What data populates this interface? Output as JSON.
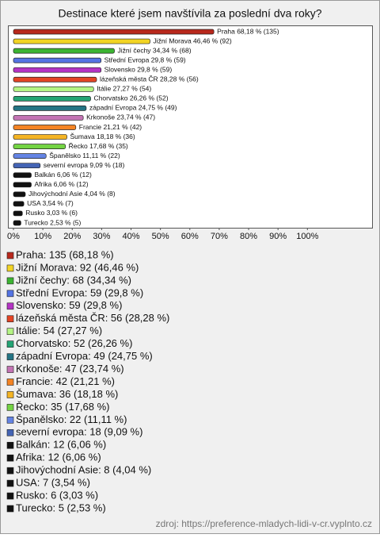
{
  "chart_data": {
    "type": "hbar",
    "title": "Destinace které jsem navštívila za poslední dva roky?",
    "categories": [
      "Praha",
      "Jižní Morava",
      "Jižní čechy",
      "Střední Evropa",
      "Slovensko",
      "lázeňská města ČR",
      "Itálie",
      "Chorvatsko",
      "západní Evropa",
      "Krkonoše",
      "Francie",
      "Šumava",
      "Řecko",
      "Španělsko",
      "severní evropa",
      "Balkán",
      "Afrika",
      "Jihovýchodní Asie",
      "USA",
      "Rusko",
      "Turecko"
    ],
    "values": [
      68.18,
      46.46,
      34.34,
      29.8,
      29.8,
      28.28,
      27.27,
      26.26,
      24.75,
      23.74,
      21.21,
      18.18,
      17.68,
      11.11,
      9.09,
      6.06,
      6.06,
      4.04,
      3.54,
      3.03,
      2.53
    ],
    "value_labels": [
      "Praha 68,18 % (135)",
      "Jižní Morava 46,46 % (92)",
      "Jižní čechy 34,34 % (68)",
      "Střední Evropa 29,8 % (59)",
      "Slovensko 29,8 % (59)",
      "lázeňská města ČR 28,28 % (56)",
      "Itálie 27,27 % (54)",
      "Chorvatsko 26,26 % (52)",
      "západní Evropa 24,75 % (49)",
      "Krkonoše 23,74 % (47)",
      "Francie 21,21 % (42)",
      "Šumava 18,18 % (36)",
      "Řecko 17,68 % (35)",
      "Španělsko 11,11 % (22)",
      "severní evropa 9,09 % (18)",
      "Balkán 6,06 % (12)",
      "Afrika 6,06 % (12)",
      "Jihovýchodní Asie 4,04 % (8)",
      "USA 3,54 % (7)",
      "Rusko 3,03 % (6)",
      "Turecko 2,53 % (5)"
    ],
    "legend": [
      "Praha: 135 (68,18 %)",
      "Jižní Morava: 92 (46,46 %)",
      "Jižní čechy: 68 (34,34 %)",
      "Střední Evropa: 59 (29,8 %)",
      "Slovensko: 59 (29,8 %)",
      "lázeňská města ČR: 56 (28,28 %)",
      "Itálie: 54 (27,27 %)",
      "Chorvatsko: 52 (26,26 %)",
      "západní Evropa: 49 (24,75 %)",
      "Krkonoše: 47 (23,74 %)",
      "Francie: 42 (21,21 %)",
      "Šumava: 36 (18,18 %)",
      "Řecko: 35 (17,68 %)",
      "Španělsko: 22 (11,11 %)",
      "severní evropa: 18 (9,09 %)",
      "Balkán: 12 (6,06 %)",
      "Afrika: 12 (6,06 %)",
      "Jihovýchodní Asie: 8 (4,04 %)",
      "USA: 7 (3,54 %)",
      "Rusko: 6 (3,03 %)",
      "Turecko: 5 (2,53 %)"
    ],
    "colors": [
      "#b8281c",
      "#f2d424",
      "#3cb432",
      "#5474e4",
      "#b434c4",
      "#e44424",
      "#b4f484",
      "#24a474",
      "#247484",
      "#c474b4",
      "#f48424",
      "#f4b424",
      "#74d444",
      "#6484e4",
      "#4464b4",
      "#111111",
      "#111111",
      "#111111",
      "#111111",
      "#111111",
      "#111111"
    ],
    "xlim": [
      0,
      122
    ],
    "xticks": [
      {
        "value": 0,
        "label": "0%"
      },
      {
        "value": 10,
        "label": "10%"
      },
      {
        "value": 20,
        "label": "20%"
      },
      {
        "value": 30,
        "label": "30%"
      },
      {
        "value": 40,
        "label": "40%"
      },
      {
        "value": 50,
        "label": "50%"
      },
      {
        "value": 60,
        "label": "60%"
      },
      {
        "value": 70,
        "label": "70%"
      },
      {
        "value": 80,
        "label": "80%"
      },
      {
        "value": 90,
        "label": "90%"
      },
      {
        "value": 100,
        "label": "100%"
      }
    ],
    "grid": false,
    "source": "zdroj: https://preference-mladych-lidi-v-cr.vyplnto.cz"
  }
}
